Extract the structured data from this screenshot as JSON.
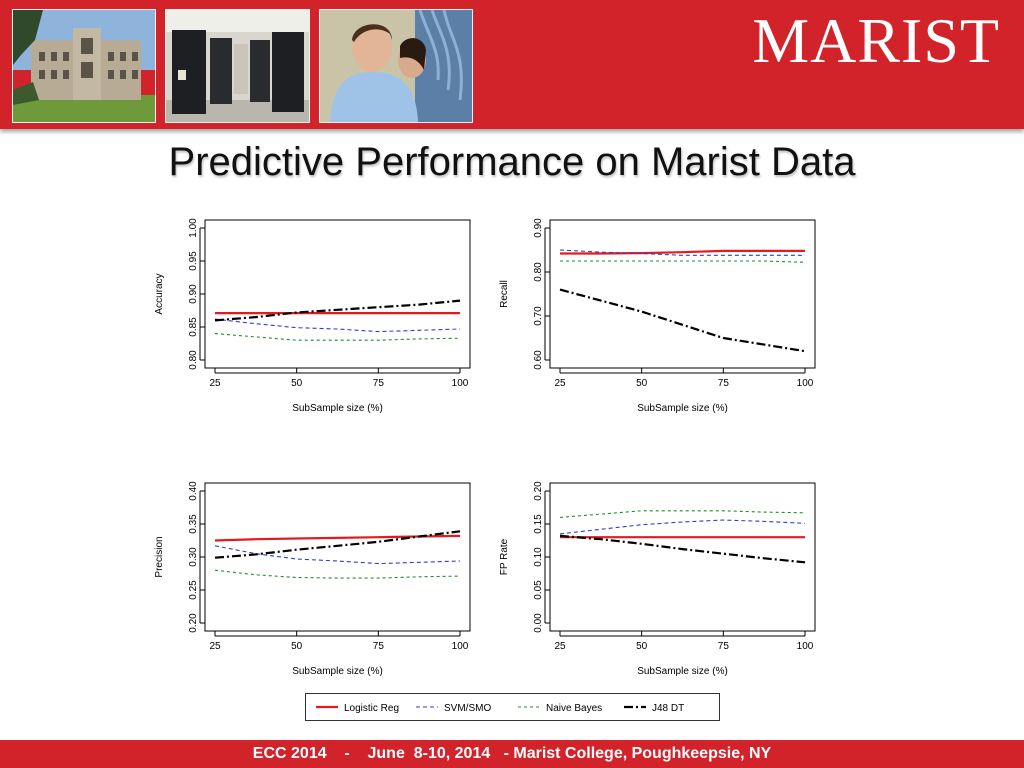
{
  "header": {
    "logo_text": "MARIST",
    "photos": [
      {
        "name": "campus-building-photo"
      },
      {
        "name": "server-room-photo"
      },
      {
        "name": "students-cabling-photo"
      }
    ]
  },
  "slide": {
    "title": "Predictive Performance on Marist Data",
    "footer": "ECC 2014    -    June  8-10, 2014   - Marist College, Poughkeepsie, NY"
  },
  "colors": {
    "brand_red": "#d2232a",
    "logistic": "#e41a1c",
    "svm": "#2b3ed6",
    "naive": "#1f8f2a",
    "j48": "#000000"
  },
  "legend": [
    {
      "key": "logistic",
      "label": "Logistic Reg"
    },
    {
      "key": "svm",
      "label": "SVM/SMO"
    },
    {
      "key": "naive",
      "label": "Naive Bayes"
    },
    {
      "key": "j48",
      "label": "J48 DT"
    }
  ],
  "chart_data": [
    {
      "type": "line",
      "ylabel": "Accuracy",
      "xlabel": "SubSample size (%)",
      "xticks": [
        25,
        50,
        75,
        100
      ],
      "yticks": [
        "0.80",
        "0.85",
        "0.90",
        "0.95",
        "1.00"
      ],
      "xlim": [
        25,
        100
      ],
      "ylim": [
        0.8,
        1.0
      ],
      "x": [
        25,
        37.5,
        50,
        62.5,
        75,
        87.5,
        100
      ],
      "series": [
        {
          "key": "logistic",
          "name": "Logistic Reg",
          "values": [
            0.871,
            0.871,
            0.871,
            0.871,
            0.871,
            0.871,
            0.871
          ]
        },
        {
          "key": "svm",
          "name": "SVM/SMO",
          "values": [
            0.862,
            0.855,
            0.849,
            0.847,
            0.843,
            0.845,
            0.847
          ]
        },
        {
          "key": "naive",
          "name": "Naive Bayes",
          "values": [
            0.84,
            0.835,
            0.83,
            0.83,
            0.83,
            0.832,
            0.833
          ]
        },
        {
          "key": "j48",
          "name": "J48 DT",
          "values": [
            0.86,
            0.865,
            0.872,
            0.876,
            0.88,
            0.884,
            0.89
          ]
        }
      ]
    },
    {
      "type": "line",
      "ylabel": "Recall",
      "xlabel": "SubSample size (%)",
      "xticks": [
        25,
        50,
        75,
        100
      ],
      "yticks": [
        "0.60",
        "0.70",
        "0.80",
        "0.90"
      ],
      "xlim": [
        25,
        100
      ],
      "ylim": [
        0.6,
        0.9
      ],
      "x": [
        25,
        37.5,
        50,
        62.5,
        75,
        87.5,
        100
      ],
      "series": [
        {
          "key": "logistic",
          "name": "Logistic Reg",
          "values": [
            0.842,
            0.842,
            0.843,
            0.845,
            0.848,
            0.848,
            0.848
          ]
        },
        {
          "key": "svm",
          "name": "SVM/SMO",
          "values": [
            0.85,
            0.845,
            0.842,
            0.838,
            0.838,
            0.838,
            0.838
          ]
        },
        {
          "key": "naive",
          "name": "Naive Bayes",
          "values": [
            0.825,
            0.825,
            0.825,
            0.825,
            0.825,
            0.825,
            0.822
          ]
        },
        {
          "key": "j48",
          "name": "J48 DT",
          "values": [
            0.76,
            0.735,
            0.71,
            0.68,
            0.65,
            0.635,
            0.62
          ]
        }
      ]
    },
    {
      "type": "line",
      "ylabel": "Precision",
      "xlabel": "SubSample size (%)",
      "xticks": [
        25,
        50,
        75,
        100
      ],
      "yticks": [
        "0.20",
        "0.25",
        "0.30",
        "0.35",
        "0.40"
      ],
      "xlim": [
        25,
        100
      ],
      "ylim": [
        0.2,
        0.4
      ],
      "x": [
        25,
        37.5,
        50,
        62.5,
        75,
        87.5,
        100
      ],
      "series": [
        {
          "key": "logistic",
          "name": "Logistic Reg",
          "values": [
            0.325,
            0.327,
            0.328,
            0.329,
            0.33,
            0.331,
            0.332
          ]
        },
        {
          "key": "svm",
          "name": "SVM/SMO",
          "values": [
            0.317,
            0.305,
            0.297,
            0.294,
            0.29,
            0.292,
            0.294
          ]
        },
        {
          "key": "naive",
          "name": "Naive Bayes",
          "values": [
            0.28,
            0.273,
            0.269,
            0.268,
            0.268,
            0.27,
            0.271
          ]
        },
        {
          "key": "j48",
          "name": "J48 DT",
          "values": [
            0.299,
            0.304,
            0.311,
            0.317,
            0.323,
            0.331,
            0.339
          ]
        }
      ]
    },
    {
      "type": "line",
      "ylabel": "FP Rate",
      "xlabel": "SubSample size (%)",
      "xticks": [
        25,
        50,
        75,
        100
      ],
      "yticks": [
        "0.00",
        "0.05",
        "0.10",
        "0.15",
        "0.20"
      ],
      "xlim": [
        25,
        100
      ],
      "ylim": [
        0.0,
        0.2
      ],
      "x": [
        25,
        37.5,
        50,
        62.5,
        75,
        87.5,
        100
      ],
      "series": [
        {
          "key": "logistic",
          "name": "Logistic Reg",
          "values": [
            0.13,
            0.13,
            0.13,
            0.13,
            0.13,
            0.13,
            0.13
          ]
        },
        {
          "key": "svm",
          "name": "SVM/SMO",
          "values": [
            0.135,
            0.142,
            0.149,
            0.153,
            0.156,
            0.154,
            0.151
          ]
        },
        {
          "key": "naive",
          "name": "Naive Bayes",
          "values": [
            0.16,
            0.165,
            0.17,
            0.17,
            0.17,
            0.168,
            0.167
          ]
        },
        {
          "key": "j48",
          "name": "J48 DT",
          "values": [
            0.132,
            0.127,
            0.12,
            0.112,
            0.105,
            0.098,
            0.092
          ]
        }
      ]
    }
  ]
}
